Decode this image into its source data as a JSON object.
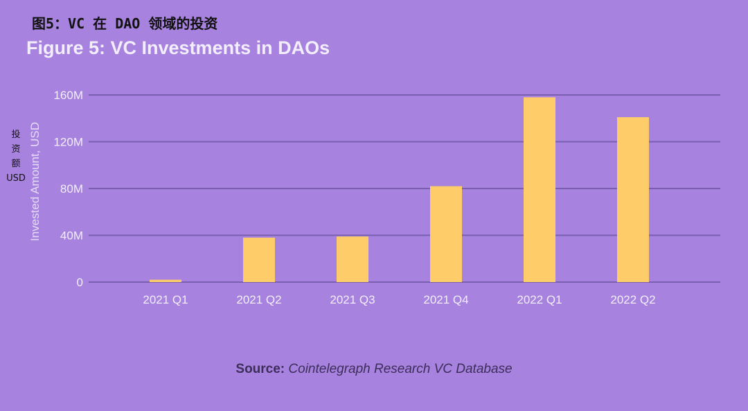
{
  "annotation": {
    "title_cn": "图5：VC 在 DAO 领域的投资",
    "ylabel_cn": [
      "投",
      "资",
      "额",
      "USD"
    ]
  },
  "source": {
    "label": "Source:",
    "text": "Cointelegraph Research VC Database"
  },
  "colors": {
    "background": "#a783df",
    "bar": "#fecd6a",
    "gridline": "#7a5fb0",
    "axis_text": "#f2eefb"
  },
  "chart_data": {
    "type": "bar",
    "title": "Figure 5: VC Investments in DAOs",
    "xlabel": "",
    "ylabel": "Invested Amount, USD",
    "categories": [
      "2021 Q1",
      "2021 Q2",
      "2021 Q3",
      "2021 Q4",
      "2022 Q1",
      "2022 Q2"
    ],
    "values": [
      2,
      38,
      39,
      82,
      158,
      141
    ],
    "value_unit": "M USD",
    "ylim": [
      0,
      160
    ],
    "yticks": [
      0,
      40,
      80,
      120,
      160
    ],
    "ytick_labels": [
      "0",
      "40M",
      "80M",
      "120M",
      "160M"
    ],
    "grid": true,
    "legend": "none"
  }
}
